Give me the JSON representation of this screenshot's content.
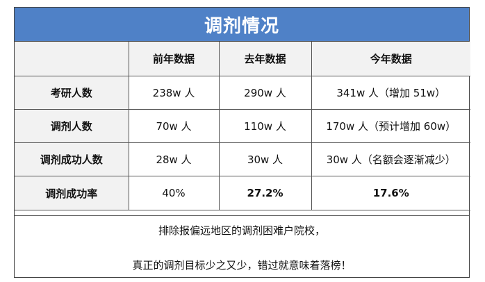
{
  "title": "调剂情况",
  "table": {
    "columns": [
      "",
      "前年数据",
      "去年数据",
      "今年数据"
    ],
    "rows": [
      {
        "label": "考研人数",
        "cells": [
          "238w 人",
          "290w 人",
          "341w 人（增加 51w）"
        ]
      },
      {
        "label": "调剂人数",
        "cells": [
          "70w 人",
          "110w 人",
          "170w 人（预计增加 60w）"
        ]
      },
      {
        "label": "调剂成功人数",
        "cells": [
          "28w 人",
          "30w 人",
          "30w 人（名额会逐渐减少）"
        ]
      },
      {
        "label": "调剂成功率",
        "cells": [
          "40%",
          "27.2%",
          "17.6%"
        ]
      }
    ]
  },
  "footer": {
    "line1": "排除报偏远地区的调剂困难户院校，",
    "line2": "真正的调剂目标少之又少，错过就意味着落榜！"
  },
  "colors": {
    "title_bg": "#4f81c7",
    "label_bg": "#f2f2f2"
  }
}
